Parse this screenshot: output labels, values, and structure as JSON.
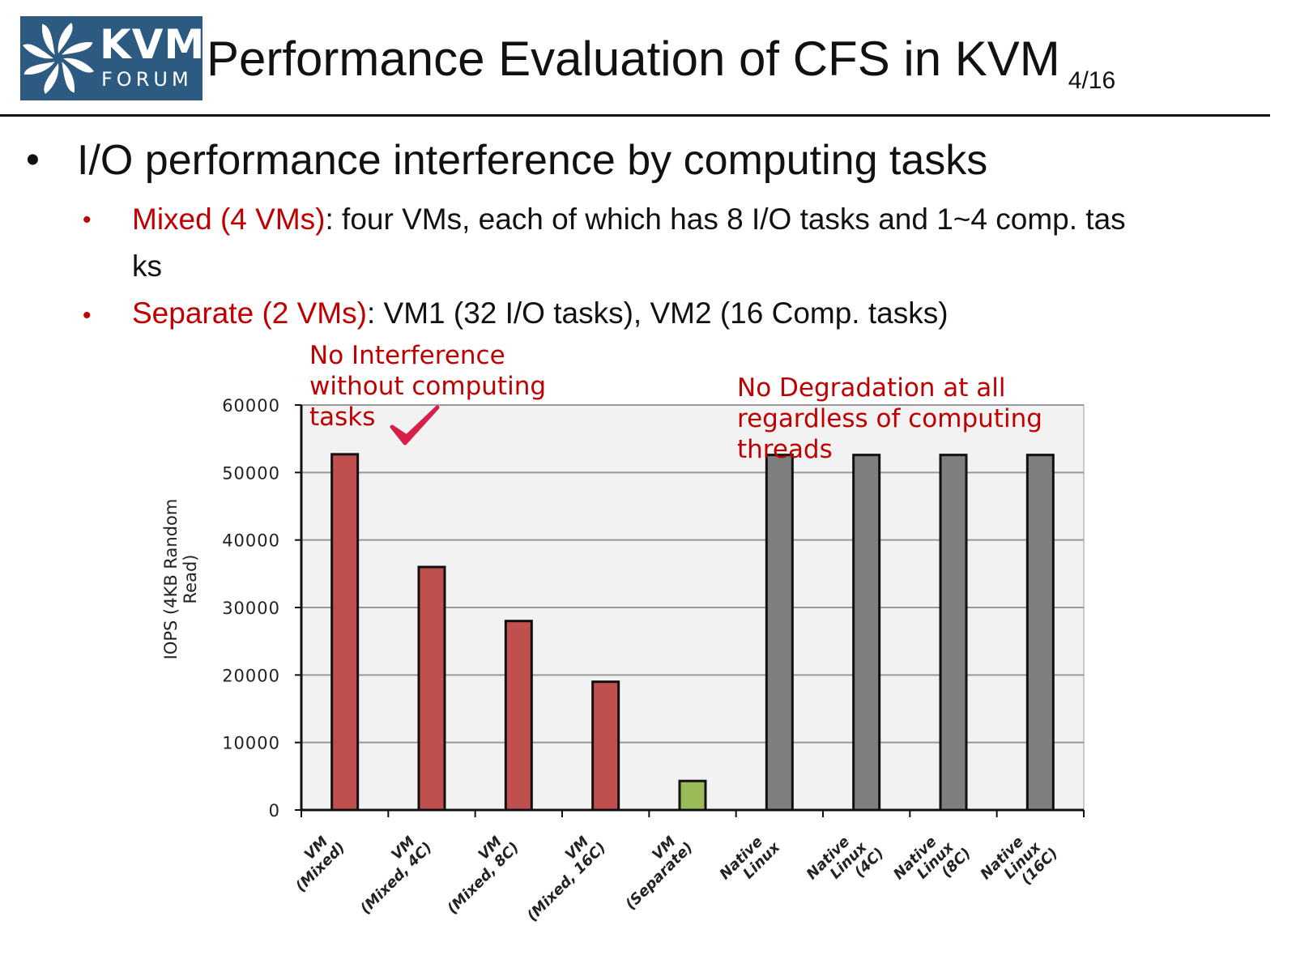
{
  "logo": {
    "line1": "KVM",
    "line2": "FORUM"
  },
  "header": {
    "title": "Performance Evaluation of CFS in KVM",
    "page": "4/16"
  },
  "bullets": {
    "main": "I/O performance interference by computing tasks",
    "sub": [
      {
        "label": "Mixed (4 VMs)",
        "text": ": four VMs, each of which has 8 I/O tasks and 1~4 comp. tas",
        "cont": "ks"
      },
      {
        "label": "Separate (2 VMs)",
        "text": ": VM1 (32 I/O tasks), VM2 (16 Comp. tasks)"
      }
    ]
  },
  "annotations": {
    "left": "No Interference\nwithout computing\ntasks",
    "right": "No Degradation at all\nregardless of computing\nthreads"
  },
  "chart_data": {
    "type": "bar",
    "title": "",
    "xlabel": "",
    "ylabel": "IOPS (4KB Random Read)",
    "ylim": [
      0,
      60000
    ],
    "yticks": [
      "0",
      "10000",
      "20000",
      "30000",
      "40000",
      "50000",
      "60000"
    ],
    "grid": true,
    "categories": [
      "VM (Mixed)",
      "VM (Mixed, 4C)",
      "VM (Mixed, 8C)",
      "VM (Mixed, 16C)",
      "VM (Separate)",
      "Native Linux",
      "Native Linux (4C)",
      "Native Linux (8C)",
      "Native Linux (16C)"
    ],
    "values": [
      52700,
      36000,
      28000,
      19000,
      4300,
      52600,
      52600,
      52600,
      52600
    ],
    "colors": [
      "#c0504d",
      "#c0504d",
      "#c0504d",
      "#c0504d",
      "#9bbb59",
      "#7f7f7f",
      "#7f7f7f",
      "#7f7f7f",
      "#7f7f7f"
    ]
  },
  "colors": {
    "accent": "#c00000",
    "logo_bg": "#2c5a80",
    "plot_bg": "#f2f2f2"
  }
}
